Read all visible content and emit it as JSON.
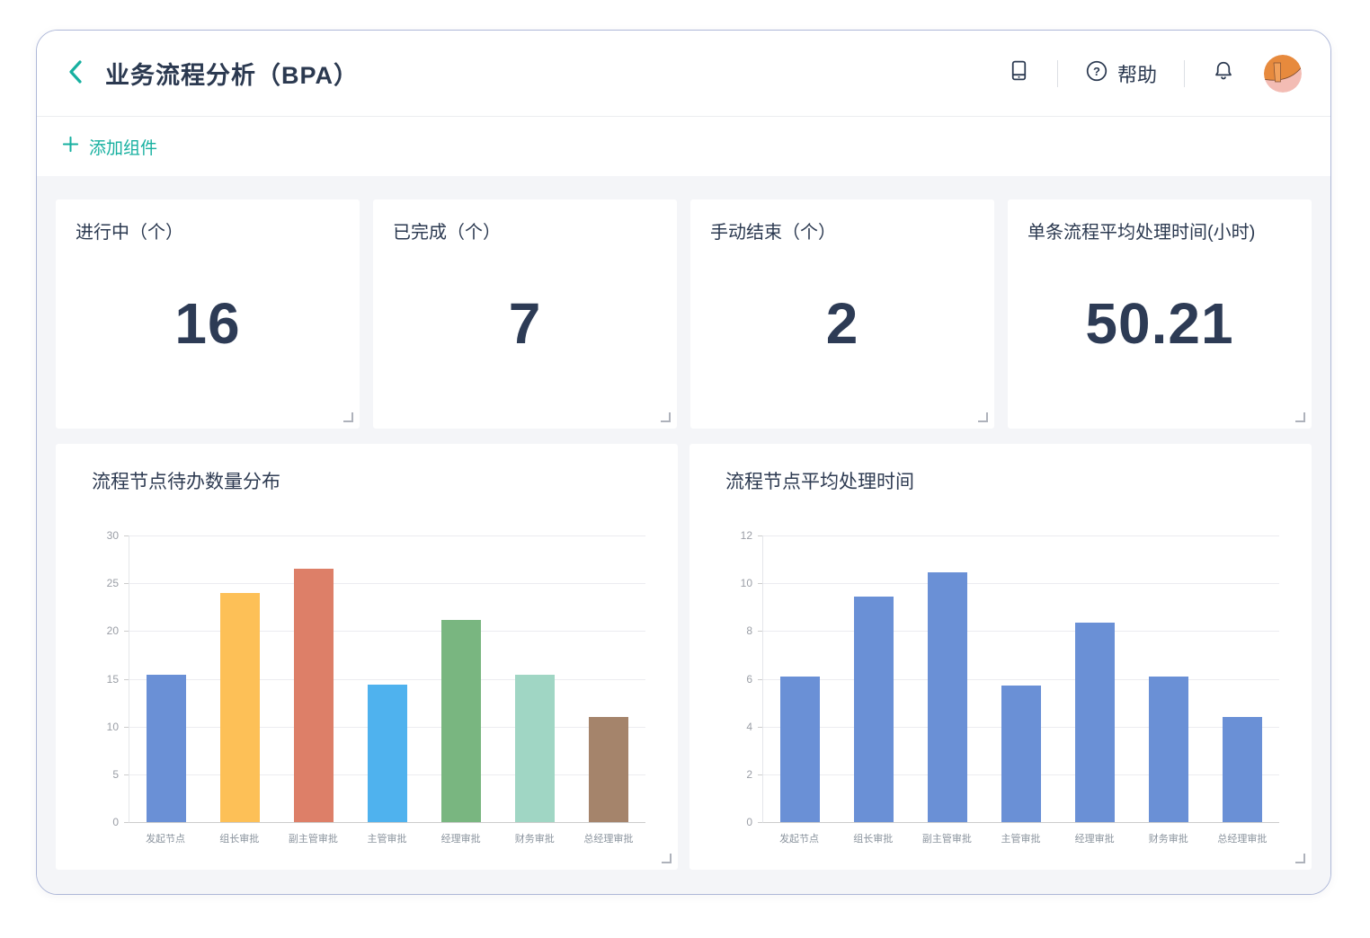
{
  "header": {
    "title": "业务流程分析（BPA）",
    "help_label": "帮助",
    "icons": [
      "chevron-left-icon",
      "mobile-preview-icon",
      "help-icon",
      "bell-icon",
      "avatar"
    ]
  },
  "toolbar": {
    "add_component_label": "添加组件"
  },
  "theme": {
    "accent": "#17b0a0",
    "title_color": "#2b3950",
    "content_bg": "#f4f5f8",
    "window_border": "#aeb8d8"
  },
  "stat_cards": [
    {
      "label": "进行中（个）",
      "value": "16"
    },
    {
      "label": "已完成（个）",
      "value": "7"
    },
    {
      "label": "手动结束（个）",
      "value": "2"
    },
    {
      "label": "单条流程平均处理时间(小时)",
      "value": "50.21"
    }
  ],
  "chart_data": [
    {
      "type": "bar",
      "title": "流程节点待办数量分布",
      "categories": [
        "发起节点",
        "组长审批",
        "副主管审批",
        "主管审批",
        "经理审批",
        "财务审批",
        "总经理审批"
      ],
      "values": [
        15.4,
        24,
        26.5,
        14.4,
        21.2,
        15.4,
        11
      ],
      "bar_colors": [
        "#6a90d6",
        "#fdc057",
        "#dd7f68",
        "#4fb2ee",
        "#79b680",
        "#a0d6c4",
        "#a5846b"
      ],
      "xlabel": "",
      "ylabel": "",
      "ylim": [
        0,
        30
      ],
      "yticks": [
        0,
        5,
        10,
        15,
        20,
        25,
        30
      ],
      "grid": true,
      "legend": "none"
    },
    {
      "type": "bar",
      "title": "流程节点平均处理时间",
      "categories": [
        "发起节点",
        "组长审批",
        "副主管审批",
        "主管审批",
        "经理审批",
        "财务审批",
        "总经理审批"
      ],
      "values": [
        6.1,
        9.45,
        10.45,
        5.7,
        8.35,
        6.1,
        4.4
      ],
      "bar_colors": [
        "#6a90d6",
        "#6a90d6",
        "#6a90d6",
        "#6a90d6",
        "#6a90d6",
        "#6a90d6",
        "#6a90d6"
      ],
      "xlabel": "",
      "ylabel": "",
      "ylim": [
        0,
        12
      ],
      "yticks": [
        0,
        2,
        4,
        6,
        8,
        10,
        12
      ],
      "grid": true,
      "legend": "none"
    }
  ]
}
